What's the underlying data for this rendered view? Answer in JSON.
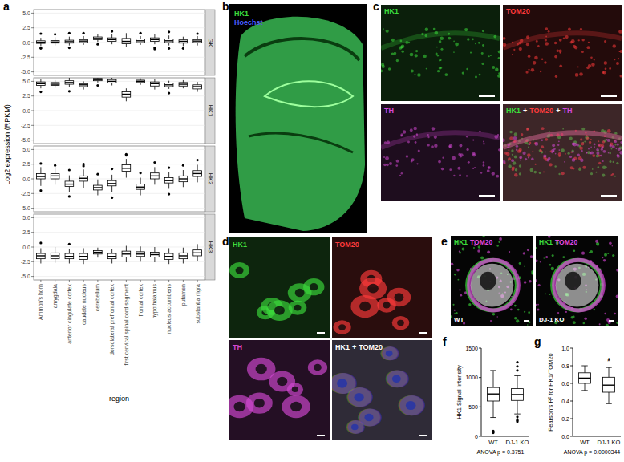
{
  "chart_data": [
    {
      "type": "box",
      "panel_label": "a",
      "x_label": "region",
      "y_label": "Log2 expression (RPKM)",
      "categories": [
        "Ammon's horn",
        "amygdala",
        "anterior cingulate cortex",
        "caudate nucleus",
        "cerebellum",
        "dorsolateral prefrontal cortex",
        "first cervical spinal cord segment",
        "frontal cortex",
        "hypothalamus",
        "nucleus accumbens",
        "putamen",
        "substantia nigra"
      ],
      "ylim": [
        -5.6,
        5.6
      ],
      "yticks": [
        {
          "value": -5,
          "label": "-5.0"
        },
        -2.5,
        {
          "value": 0,
          "label": "0.0"
        },
        2.5,
        {
          "value": 5,
          "label": "5.0"
        }
      ],
      "grid": true,
      "facets": [
        {
          "name": "GK",
          "boxes": [
            {
              "low": -0.6,
              "q1": -0.15,
              "median": 0.05,
              "q3": 0.3,
              "high": 0.8,
              "outliers": [
                1.5,
                -1.0,
                -0.9
              ]
            },
            {
              "low": -0.5,
              "q1": -0.1,
              "median": 0.1,
              "q3": 0.35,
              "high": 0.9,
              "outliers": [
                1.4
              ]
            },
            {
              "low": -0.5,
              "q1": -0.1,
              "median": 0.15,
              "q3": 0.4,
              "high": 1.0,
              "outliers": [
                1.6,
                -0.9
              ]
            },
            {
              "low": -0.4,
              "q1": 0.0,
              "median": 0.25,
              "q3": 0.5,
              "high": 1.1,
              "outliers": [
                1.6
              ]
            },
            {
              "low": 0.1,
              "q1": 0.5,
              "median": 0.7,
              "q3": 0.95,
              "high": 1.4,
              "outliers": [
                -0.3
              ]
            },
            {
              "low": -0.3,
              "q1": 0.2,
              "median": 0.5,
              "q3": 0.8,
              "high": 1.4,
              "outliers": [
                1.9
              ]
            },
            {
              "low": -0.8,
              "q1": -0.2,
              "median": 0.2,
              "q3": 0.7,
              "high": 1.6,
              "outliers": []
            },
            {
              "low": -0.4,
              "q1": 0.0,
              "median": 0.3,
              "q3": 0.6,
              "high": 1.1,
              "outliers": [
                1.6
              ]
            },
            {
              "low": -0.3,
              "q1": 0.2,
              "median": 0.5,
              "q3": 0.8,
              "high": 1.4,
              "outliers": [
                -0.9,
                -1.1
              ]
            },
            {
              "low": -0.5,
              "q1": 0.0,
              "median": 0.3,
              "q3": 0.6,
              "high": 1.2,
              "outliers": [
                1.8,
                -1.0
              ]
            },
            {
              "low": -0.6,
              "q1": -0.1,
              "median": 0.2,
              "q3": 0.45,
              "high": 1.0,
              "outliers": [
                -1.0
              ]
            },
            {
              "low": -0.5,
              "q1": 0.0,
              "median": 0.25,
              "q3": 0.5,
              "high": 1.1,
              "outliers": [
                1.5
              ]
            }
          ]
        },
        {
          "name": "HK1",
          "boxes": [
            {
              "low": 3.8,
              "q1": 4.3,
              "median": 4.6,
              "q3": 4.9,
              "high": 5.4,
              "outliers": [
                3.2
              ]
            },
            {
              "low": 3.9,
              "q1": 4.3,
              "median": 4.5,
              "q3": 4.8,
              "high": 5.2,
              "outliers": []
            },
            {
              "low": 4.0,
              "q1": 4.5,
              "median": 4.8,
              "q3": 5.1,
              "high": 5.6,
              "outliers": [
                3.3
              ]
            },
            {
              "low": 3.6,
              "q1": 4.1,
              "median": 4.4,
              "q3": 4.6,
              "high": 5.0,
              "outliers": []
            },
            {
              "low": 4.8,
              "q1": 5.1,
              "median": 5.3,
              "q3": 5.5,
              "high": 5.8,
              "outliers": [
                4.3
              ]
            },
            {
              "low": 4.3,
              "q1": 4.7,
              "median": 5.0,
              "q3": 5.3,
              "high": 5.7,
              "outliers": []
            },
            {
              "low": 1.6,
              "q1": 2.3,
              "median": 2.8,
              "q3": 3.2,
              "high": 3.8,
              "outliers": []
            },
            {
              "low": 4.4,
              "q1": 4.8,
              "median": 5.0,
              "q3": 5.2,
              "high": 5.5,
              "outliers": []
            },
            {
              "low": 3.6,
              "q1": 4.2,
              "median": 4.6,
              "q3": 4.9,
              "high": 5.4,
              "outliers": []
            },
            {
              "low": 3.7,
              "q1": 4.1,
              "median": 4.4,
              "q3": 4.7,
              "high": 5.1,
              "outliers": [
                3.0
              ]
            },
            {
              "low": 3.8,
              "q1": 4.2,
              "median": 4.5,
              "q3": 4.8,
              "high": 5.2,
              "outliers": []
            },
            {
              "low": 3.2,
              "q1": 3.7,
              "median": 4.1,
              "q3": 4.4,
              "high": 4.9,
              "outliers": []
            }
          ]
        },
        {
          "name": "HK2",
          "boxes": [
            {
              "low": -1.2,
              "q1": 0.0,
              "median": 0.4,
              "q3": 0.9,
              "high": 2.0,
              "outliers": [
                2.6,
                -2.0
              ]
            },
            {
              "low": -1.0,
              "q1": 0.0,
              "median": 0.5,
              "q3": 0.9,
              "high": 2.0,
              "outliers": [
                2.3
              ]
            },
            {
              "low": -2.3,
              "q1": -1.3,
              "median": -0.9,
              "q3": -0.4,
              "high": 0.6,
              "outliers": [
                1.5,
                -3.0
              ]
            },
            {
              "low": -1.5,
              "q1": -0.4,
              "median": 0.1,
              "q3": 0.5,
              "high": 1.6,
              "outliers": [
                2.2,
                2.5
              ]
            },
            {
              "low": -2.8,
              "q1": -1.9,
              "median": -1.5,
              "q3": -1.1,
              "high": -0.1,
              "outliers": [
                0.8
              ]
            },
            {
              "low": -2.3,
              "q1": -1.2,
              "median": -0.8,
              "q3": -0.3,
              "high": 0.7,
              "outliers": [
                1.7,
                -3.2
              ]
            },
            {
              "low": 0.2,
              "q1": 1.3,
              "median": 1.8,
              "q3": 2.4,
              "high": 3.4,
              "outliers": [
                4.2,
                4.0
              ]
            },
            {
              "low": -2.8,
              "q1": -1.8,
              "median": -1.4,
              "q3": -0.9,
              "high": 0.2,
              "outliers": [
                1.0
              ]
            },
            {
              "low": -1.0,
              "q1": 0.0,
              "median": 0.5,
              "q3": 1.0,
              "high": 2.0,
              "outliers": [
                2.8
              ]
            },
            {
              "low": -1.7,
              "q1": -0.7,
              "median": -0.3,
              "q3": 0.2,
              "high": 1.2,
              "outliers": [
                1.9,
                -2.6
              ]
            },
            {
              "low": -1.4,
              "q1": -0.5,
              "median": 0.0,
              "q3": 0.5,
              "high": 1.5,
              "outliers": [
                2.3
              ]
            },
            {
              "low": -0.6,
              "q1": 0.4,
              "median": 0.9,
              "q3": 1.4,
              "high": 2.4,
              "outliers": [
                3.2
              ]
            }
          ]
        },
        {
          "name": "HK3",
          "boxes": [
            {
              "low": -2.8,
              "q1": -2.0,
              "median": -1.5,
              "q3": -1.1,
              "high": -0.2,
              "outliers": [
                0.7
              ]
            },
            {
              "low": -2.7,
              "q1": -2.0,
              "median": -1.5,
              "q3": -1.0,
              "high": 0.0,
              "outliers": []
            },
            {
              "low": -2.8,
              "q1": -2.0,
              "median": -1.6,
              "q3": -1.1,
              "high": -0.3,
              "outliers": [
                0.5
              ]
            },
            {
              "low": -2.9,
              "q1": -2.1,
              "median": -1.6,
              "q3": -1.1,
              "high": -0.2,
              "outliers": []
            },
            {
              "low": -1.8,
              "q1": -1.2,
              "median": -0.9,
              "q3": -0.6,
              "high": -0.1,
              "outliers": []
            },
            {
              "low": -2.8,
              "q1": -2.0,
              "median": -1.6,
              "q3": -1.1,
              "high": -0.3,
              "outliers": []
            },
            {
              "low": -2.6,
              "q1": -1.7,
              "median": -1.2,
              "q3": -0.7,
              "high": 0.2,
              "outliers": []
            },
            {
              "low": -2.5,
              "q1": -1.6,
              "median": -1.2,
              "q3": -0.8,
              "high": 0.1,
              "outliers": []
            },
            {
              "low": -2.6,
              "q1": -1.7,
              "median": -1.3,
              "q3": -0.9,
              "high": 0.0,
              "outliers": []
            },
            {
              "low": -2.9,
              "q1": -2.1,
              "median": -1.6,
              "q3": -1.1,
              "high": -0.2,
              "outliers": []
            },
            {
              "low": -2.8,
              "q1": -2.0,
              "median": -1.5,
              "q3": -1.0,
              "high": -0.1,
              "outliers": []
            },
            {
              "low": -2.4,
              "q1": -1.5,
              "median": -1.0,
              "q3": -0.5,
              "high": 0.5,
              "outliers": []
            }
          ]
        }
      ]
    },
    {
      "type": "box",
      "panel_label": "f",
      "y_label": "HK1 Signal Intensity",
      "categories": [
        "WT",
        "DJ-1 KO"
      ],
      "ylim": [
        0,
        1500
      ],
      "yticks": [
        0,
        500,
        1000,
        1500
      ],
      "footnote": "ANOVA p = 0.3751",
      "boxes": [
        {
          "low": 320,
          "q1": 600,
          "median": 720,
          "q3": 830,
          "high": 1120,
          "outliers": [
            60,
            90
          ]
        },
        {
          "low": 380,
          "q1": 610,
          "median": 710,
          "q3": 810,
          "high": 1030,
          "outliers": [
            1260,
            1190,
            1120,
            330,
            290,
            270,
            250
          ]
        }
      ]
    },
    {
      "type": "box",
      "panel_label": "g",
      "y_label": "Pearson's R² for HK1/TOM20",
      "categories": [
        "WT",
        "DJ-1 KO"
      ],
      "ylim": [
        0,
        1
      ],
      "yticks": [
        {
          "value": 0,
          "label": "0.0"
        },
        0.2,
        0.4,
        0.6,
        0.8,
        {
          "value": 1,
          "label": "1.0"
        }
      ],
      "footnote": "ANOVA p = 0.0000344",
      "annotations": [
        {
          "text": "*",
          "at": "DJ-1 KO"
        }
      ],
      "boxes": [
        {
          "low": 0.52,
          "q1": 0.6,
          "median": 0.66,
          "q3": 0.72,
          "high": 0.8,
          "outliers": []
        },
        {
          "low": 0.37,
          "q1": 0.5,
          "median": 0.58,
          "q3": 0.67,
          "high": 0.78,
          "outliers": []
        }
      ]
    }
  ],
  "image_panels": [
    {
      "label": "b",
      "tiles": [
        {
          "title": [
            {
              "text": "HK1",
              "color": "#3cdc3c"
            },
            {
              "text": "Hoechst",
              "color": "#4a5cff"
            }
          ]
        }
      ]
    },
    {
      "label": "c",
      "tiles": [
        {
          "title": [
            {
              "text": "HK1",
              "color": "#3cdc3c"
            }
          ]
        },
        {
          "title": [
            {
              "text": "TOM20",
              "color": "#ff3a3a"
            }
          ]
        },
        {
          "title": [
            {
              "text": "TH",
              "color": "#d448d4"
            }
          ]
        },
        {
          "title": [
            {
              "text": "HK1",
              "color": "#3cdc3c"
            },
            {
              "text": "+",
              "color": "#ffffff"
            },
            {
              "text": "TOM20",
              "color": "#ff3a3a"
            },
            {
              "text": "+",
              "color": "#ffffff"
            },
            {
              "text": "TH",
              "color": "#d448d4"
            }
          ]
        }
      ]
    },
    {
      "label": "d",
      "tiles": [
        {
          "title": [
            {
              "text": "HK1",
              "color": "#3cdc3c"
            }
          ]
        },
        {
          "title": [
            {
              "text": "TOM20",
              "color": "#ff3a3a"
            }
          ]
        },
        {
          "title": [
            {
              "text": "TH",
              "color": "#d448d4"
            }
          ]
        },
        {
          "title": [
            {
              "text": "HK1",
              "color": "#ffffff"
            },
            {
              "text": "+",
              "color": "#ffffff"
            },
            {
              "text": "TOM20",
              "color": "#ffffff"
            }
          ]
        }
      ]
    },
    {
      "label": "e",
      "tiles": [
        {
          "title": [
            {
              "text": "HK1",
              "color": "#3cdc3c"
            },
            {
              "text": "TOM20",
              "color": "#e048e0"
            }
          ],
          "condition": "WT"
        },
        {
          "title": [
            {
              "text": "HK1",
              "color": "#3cdc3c"
            },
            {
              "text": "TOM20",
              "color": "#e048e0"
            }
          ],
          "condition": "DJ-1 KO"
        }
      ]
    }
  ]
}
